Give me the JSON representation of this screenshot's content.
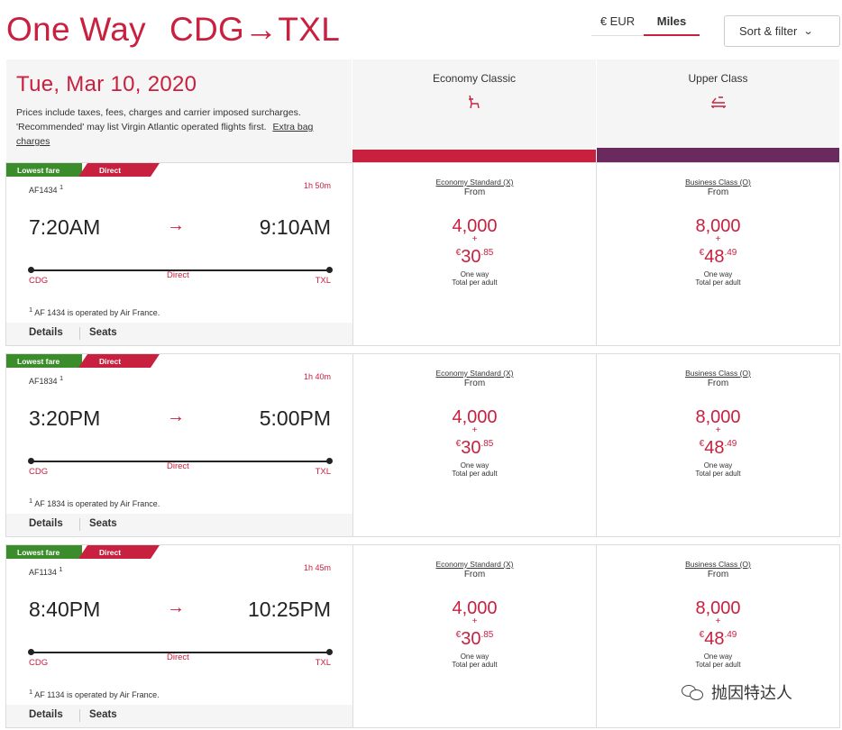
{
  "header": {
    "title": "One Way",
    "route": "CDG→TXL",
    "currency_options": [
      "€ EUR",
      "Miles"
    ],
    "selected_currency": "Miles",
    "sort_filter_label": "Sort & filter"
  },
  "info": {
    "date": "Tue, Mar 10, 2020",
    "note": "Prices include taxes, fees, charges and carrier imposed surcharges. 'Recommended' may list Virgin Atlantic operated flights first.",
    "link": "Extra bag charges"
  },
  "cabins": [
    {
      "name": "Economy Classic",
      "icon": "seat-icon",
      "bar_color": "#c8203f"
    },
    {
      "name": "Upper Class",
      "icon": "flatbed-icon",
      "bar_color": "#6b2a5e"
    }
  ],
  "flights": [
    {
      "tags": [
        "Lowest fare",
        "Direct"
      ],
      "flight_number": "AF1434",
      "duration": "1h 50m",
      "departure": "7:20AM",
      "arrival": "9:10AM",
      "from": "CDG",
      "to": "TXL",
      "stops": "Direct",
      "operated_by": "AF 1434 is operated by Air France.",
      "links": [
        "Details",
        "Seats"
      ],
      "fares": [
        {
          "name": "Economy Standard (X)",
          "from": "From",
          "miles": "4,000",
          "currency": "€",
          "cash": "30",
          "cents": ".85",
          "note1": "One way",
          "note2": "Total per adult"
        },
        {
          "name": "Business Class (O)",
          "from": "From",
          "miles": "8,000",
          "currency": "€",
          "cash": "48",
          "cents": ".49",
          "note1": "One way",
          "note2": "Total per adult"
        }
      ]
    },
    {
      "tags": [
        "Lowest fare",
        "Direct"
      ],
      "flight_number": "AF1834",
      "duration": "1h 40m",
      "departure": "3:20PM",
      "arrival": "5:00PM",
      "from": "CDG",
      "to": "TXL",
      "stops": "Direct",
      "operated_by": "AF 1834 is operated by Air France.",
      "links": [
        "Details",
        "Seats"
      ],
      "fares": [
        {
          "name": "Economy Standard (X)",
          "from": "From",
          "miles": "4,000",
          "currency": "€",
          "cash": "30",
          "cents": ".85",
          "note1": "One way",
          "note2": "Total per adult"
        },
        {
          "name": "Business Class (O)",
          "from": "From",
          "miles": "8,000",
          "currency": "€",
          "cash": "48",
          "cents": ".49",
          "note1": "One way",
          "note2": "Total per adult"
        }
      ]
    },
    {
      "tags": [
        "Lowest fare",
        "Direct"
      ],
      "flight_number": "AF1134",
      "duration": "1h 45m",
      "departure": "8:40PM",
      "arrival": "10:25PM",
      "from": "CDG",
      "to": "TXL",
      "stops": "Direct",
      "operated_by": "AF 1134 is operated by Air France.",
      "links": [
        "Details",
        "Seats"
      ],
      "fares": [
        {
          "name": "Economy Standard (X)",
          "from": "From",
          "miles": "4,000",
          "currency": "€",
          "cash": "30",
          "cents": ".85",
          "note1": "One way",
          "note2": "Total per adult"
        },
        {
          "name": "Business Class (O)",
          "from": "From",
          "miles": "8,000",
          "currency": "€",
          "cash": "48",
          "cents": ".49",
          "note1": "One way",
          "note2": "Total per adult"
        }
      ]
    }
  ],
  "watermark": {
    "text": "抛因特达人",
    "icon": "wechat-icon"
  }
}
